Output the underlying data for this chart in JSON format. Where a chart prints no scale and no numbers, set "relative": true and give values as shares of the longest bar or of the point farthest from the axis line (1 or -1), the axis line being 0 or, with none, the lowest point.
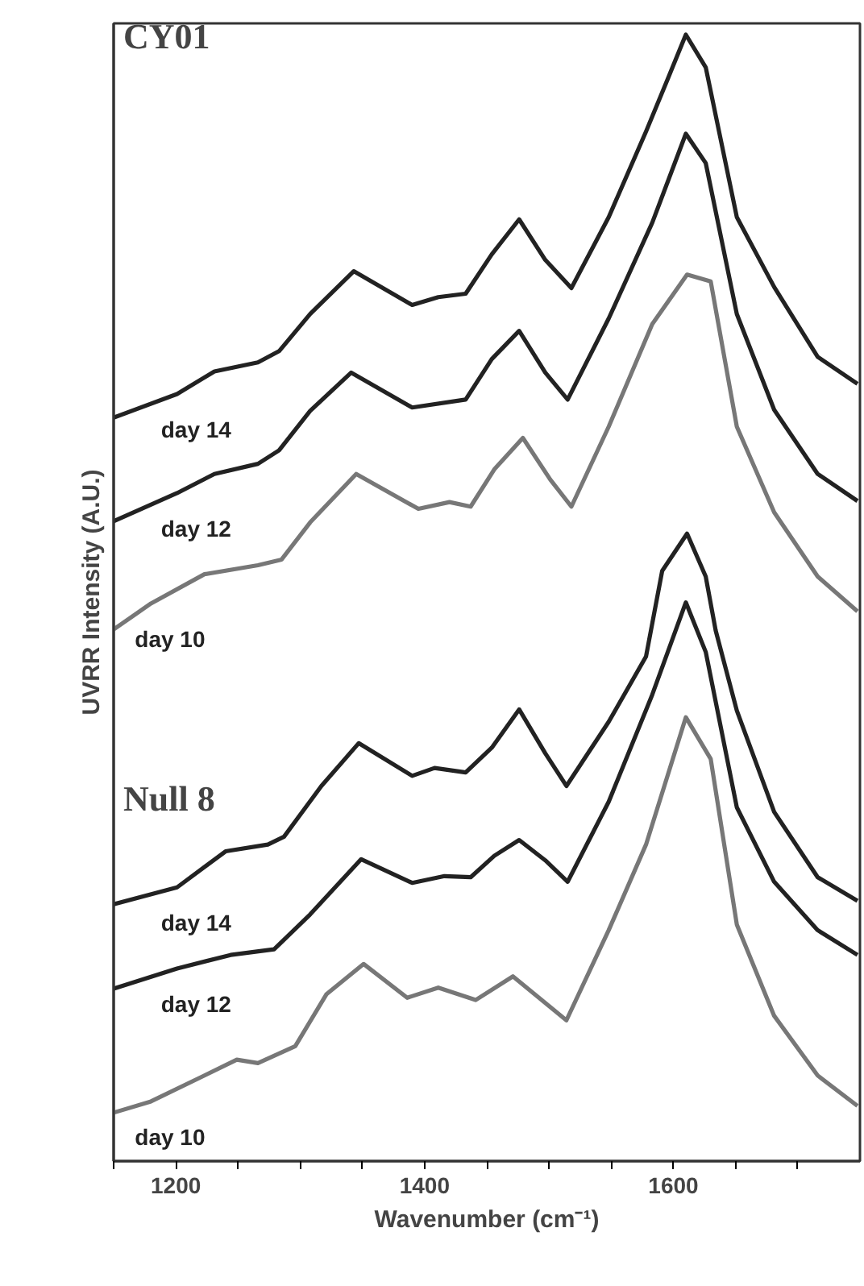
{
  "chart_data": {
    "type": "line",
    "relative": true,
    "xlabel": "Wavenumber (cm⁻¹)",
    "ylabel": "UVRR Intensity (A.U.)",
    "xlim": [
      1150,
      1750
    ],
    "xticks": [
      {
        "value": 1150,
        "label": null
      },
      1200,
      {
        "value": 1250,
        "label": null
      },
      {
        "value": 1300,
        "label": null
      },
      {
        "value": 1350,
        "label": null
      },
      1400,
      {
        "value": 1450,
        "label": null
      },
      {
        "value": 1500,
        "label": null
      },
      {
        "value": 1550,
        "label": null
      },
      1600,
      {
        "value": 1650,
        "label": null
      },
      {
        "value": 1700,
        "label": null
      }
    ],
    "grid": false,
    "marker": "none",
    "line_style": "solid",
    "annotations": [
      "CY01",
      "Null 8"
    ],
    "series": [
      {
        "name": "day 14",
        "color": "#222222",
        "x": [
          1150,
          1201,
          1231,
          1266,
          1283,
          1308,
          1343,
          1390,
          1411,
          1433,
          1454,
          1476,
          1497,
          1518,
          1548,
          1578,
          1596,
          1610,
          1626,
          1651,
          1681,
          1716,
          1748
        ],
        "values": [
          0.66,
          0.681,
          0.701,
          0.709,
          0.719,
          0.752,
          0.79,
          0.76,
          0.767,
          0.77,
          0.805,
          0.836,
          0.8,
          0.775,
          0.838,
          0.914,
          0.962,
          1.0,
          0.971,
          0.838,
          0.776,
          0.714,
          0.69
        ]
      },
      {
        "name": "day 12",
        "color": "#222222",
        "x": [
          1150,
          1201,
          1231,
          1266,
          1283,
          1308,
          1341,
          1390,
          1433,
          1454,
          1476,
          1497,
          1515,
          1548,
          1583,
          1610,
          1626,
          1651,
          1681,
          1716,
          1748
        ],
        "values": [
          0.568,
          0.593,
          0.61,
          0.619,
          0.631,
          0.666,
          0.7,
          0.669,
          0.676,
          0.712,
          0.737,
          0.7,
          0.676,
          0.748,
          0.833,
          0.912,
          0.886,
          0.752,
          0.667,
          0.61,
          0.586
        ]
      },
      {
        "name": "day 10",
        "color": "#777777",
        "x": [
          1150,
          1180,
          1223,
          1266,
          1285,
          1308,
          1345,
          1395,
          1420,
          1437,
          1456,
          1479,
          1501,
          1518,
          1548,
          1583,
          1611,
          1630,
          1651,
          1681,
          1716,
          1748
        ],
        "values": [
          0.472,
          0.495,
          0.521,
          0.529,
          0.534,
          0.567,
          0.61,
          0.579,
          0.585,
          0.581,
          0.614,
          0.642,
          0.605,
          0.581,
          0.652,
          0.743,
          0.787,
          0.781,
          0.652,
          0.576,
          0.519,
          0.488
        ]
      },
      {
        "name": "day 14",
        "color": "#222222",
        "x": [
          1150,
          1201,
          1240,
          1274,
          1287,
          1317,
          1347,
          1390,
          1408,
          1433,
          1454,
          1476,
          1497,
          1514,
          1548,
          1578,
          1591,
          1611,
          1626,
          1634,
          1651,
          1681,
          1716,
          1748
        ],
        "values": [
          0.228,
          0.243,
          0.275,
          0.281,
          0.288,
          0.333,
          0.371,
          0.342,
          0.349,
          0.345,
          0.367,
          0.401,
          0.362,
          0.333,
          0.39,
          0.448,
          0.524,
          0.557,
          0.519,
          0.471,
          0.4,
          0.31,
          0.252,
          0.231
        ]
      },
      {
        "name": "day 12",
        "color": "#222222",
        "x": [
          1150,
          1201,
          1244,
          1279,
          1308,
          1349,
          1390,
          1416,
          1437,
          1456,
          1476,
          1497,
          1515,
          1548,
          1583,
          1610,
          1626,
          1651,
          1681,
          1716,
          1748
        ],
        "values": [
          0.153,
          0.171,
          0.183,
          0.188,
          0.219,
          0.268,
          0.247,
          0.253,
          0.252,
          0.271,
          0.285,
          0.267,
          0.248,
          0.319,
          0.414,
          0.496,
          0.452,
          0.314,
          0.248,
          0.205,
          0.183
        ]
      },
      {
        "name": "day 10",
        "color": "#777777",
        "x": [
          1150,
          1180,
          1223,
          1249,
          1266,
          1296,
          1321,
          1351,
          1386,
          1411,
          1441,
          1471,
          1514,
          1548,
          1578,
          1610,
          1630,
          1651,
          1681,
          1716,
          1748
        ],
        "values": [
          0.043,
          0.053,
          0.076,
          0.09,
          0.087,
          0.102,
          0.148,
          0.175,
          0.145,
          0.154,
          0.143,
          0.164,
          0.125,
          0.205,
          0.281,
          0.394,
          0.357,
          0.21,
          0.129,
          0.076,
          0.049
        ]
      }
    ]
  }
}
